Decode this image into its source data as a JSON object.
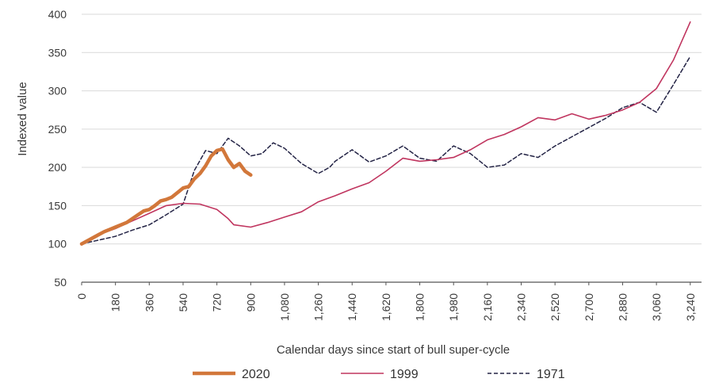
{
  "chart_data": {
    "type": "line",
    "xlabel": "Calendar days since start of bull super-cycle",
    "ylabel": "Indexed value",
    "xlim": [
      0,
      3300
    ],
    "ylim": [
      50,
      400
    ],
    "x_ticks": [
      0,
      180,
      360,
      540,
      720,
      900,
      1080,
      1260,
      1440,
      1620,
      1800,
      1980,
      2160,
      2340,
      2520,
      2700,
      2880,
      3060,
      3240
    ],
    "x_tick_labels": [
      "0",
      "180",
      "360",
      "540",
      "720",
      "900",
      "1,080",
      "1,260",
      "1,440",
      "1,620",
      "1,800",
      "1,980",
      "2,160",
      "2,340",
      "2,520",
      "2,700",
      "2,880",
      "3,060",
      "3,240"
    ],
    "y_ticks": [
      50,
      100,
      150,
      200,
      250,
      300,
      350,
      400
    ],
    "y_tick_labels": [
      "50",
      "100",
      "150",
      "200",
      "250",
      "300",
      "350",
      "400"
    ],
    "grid": "horizontal",
    "legend_position": "bottom",
    "series": [
      {
        "name": "2020",
        "color": "#d2773a",
        "style": "solid-thick",
        "x": [
          0,
          30,
          60,
          90,
          120,
          150,
          180,
          210,
          240,
          270,
          300,
          330,
          360,
          390,
          420,
          450,
          480,
          510,
          540,
          570,
          600,
          630,
          660,
          690,
          720,
          750,
          780,
          810,
          840,
          870,
          900
        ],
        "y": [
          100,
          104,
          108,
          112,
          116,
          119,
          122,
          125,
          128,
          133,
          138,
          143,
          145,
          150,
          156,
          158,
          161,
          167,
          173,
          175,
          185,
          192,
          202,
          215,
          222,
          224,
          210,
          200,
          205,
          195,
          190
        ]
      },
      {
        "name": "1999",
        "color": "#c0355f",
        "style": "solid",
        "x": [
          0,
          90,
          180,
          270,
          360,
          450,
          540,
          630,
          720,
          780,
          810,
          900,
          990,
          1080,
          1170,
          1260,
          1350,
          1440,
          1530,
          1620,
          1710,
          1800,
          1890,
          1980,
          2070,
          2160,
          2250,
          2340,
          2430,
          2520,
          2610,
          2700,
          2790,
          2880,
          2970,
          3060,
          3150,
          3240
        ],
        "y": [
          100,
          112,
          120,
          130,
          140,
          150,
          153,
          152,
          145,
          133,
          125,
          122,
          128,
          135,
          142,
          155,
          163,
          172,
          180,
          195,
          212,
          208,
          210,
          213,
          223,
          236,
          243,
          253,
          265,
          262,
          270,
          263,
          268,
          275,
          285,
          303,
          340,
          390
        ]
      },
      {
        "name": "1971",
        "color": "#232345",
        "style": "dashed",
        "x": [
          0,
          90,
          180,
          270,
          360,
          450,
          540,
          600,
          660,
          720,
          780,
          840,
          900,
          960,
          1020,
          1080,
          1170,
          1260,
          1320,
          1350,
          1440,
          1530,
          1620,
          1710,
          1800,
          1890,
          1980,
          2070,
          2160,
          2250,
          2340,
          2430,
          2520,
          2610,
          2700,
          2790,
          2880,
          2970,
          3060,
          3150,
          3240
        ],
        "y": [
          100,
          105,
          110,
          118,
          125,
          138,
          152,
          196,
          222,
          218,
          238,
          228,
          215,
          218,
          232,
          225,
          205,
          192,
          200,
          208,
          223,
          207,
          215,
          228,
          212,
          208,
          228,
          218,
          200,
          203,
          218,
          213,
          228,
          240,
          252,
          264,
          278,
          285,
          272,
          308,
          345
        ]
      }
    ]
  }
}
